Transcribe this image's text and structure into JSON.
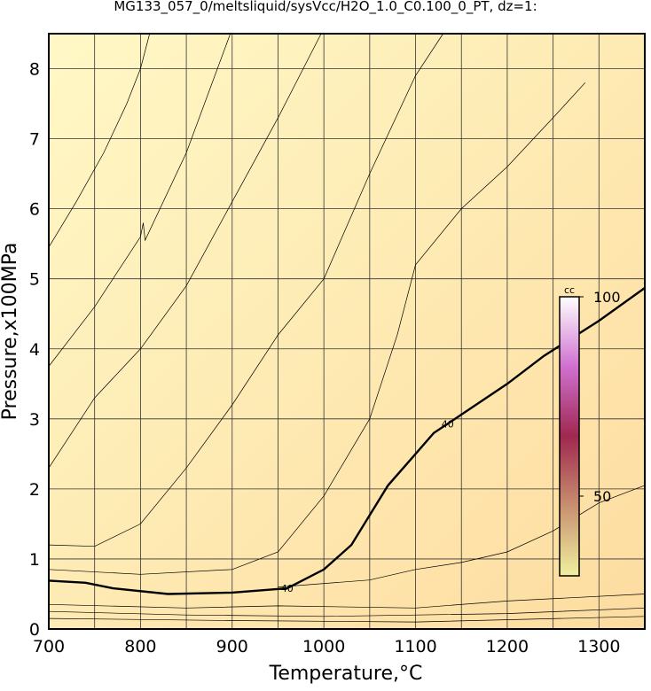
{
  "chart_data": {
    "type": "contour",
    "title": "MG133_057_0/meltsliquid/sysVcc/H2O_1.0_C0.100_0_PT, dz=1:",
    "x_label": "Temperature,°C",
    "y_label": "Pressure,x100MPa",
    "xlim": [
      700,
      1350
    ],
    "ylim": [
      0,
      8.5
    ],
    "xticks": [
      700,
      800,
      900,
      1000,
      1100,
      1200,
      1300
    ],
    "xgrid": [
      750,
      850,
      950,
      1050,
      1150,
      1250,
      1350
    ],
    "yticks": [
      0,
      1,
      2,
      3,
      4,
      5,
      6,
      7,
      8
    ],
    "background": [
      "#fff8c6",
      "#fddca0"
    ],
    "contours": [
      {
        "label": "40",
        "bold": true,
        "x": [
          700,
          740,
          770,
          830,
          900,
          960,
          1000,
          1030,
          1070,
          1100,
          1120,
          1135,
          1160,
          1200,
          1240,
          1300,
          1350
        ],
        "y": [
          0.69,
          0.66,
          0.58,
          0.5,
          0.52,
          0.58,
          0.85,
          1.2,
          2.05,
          2.5,
          2.8,
          2.93,
          3.15,
          3.5,
          3.9,
          4.4,
          4.87
        ]
      },
      {
        "x": [
          700,
          730,
          760,
          785,
          800,
          810
        ],
        "y": [
          5.45,
          6.1,
          6.8,
          7.5,
          8.0,
          8.5
        ]
      },
      {
        "x": [
          700,
          750,
          800,
          803,
          805,
          850,
          898
        ],
        "y": [
          3.75,
          4.6,
          5.6,
          5.8,
          5.55,
          6.8,
          8.5
        ]
      },
      {
        "x": [
          700,
          750,
          800,
          850,
          900,
          950,
          997
        ],
        "y": [
          2.3,
          3.3,
          4.0,
          4.9,
          6.1,
          7.3,
          8.5
        ]
      },
      {
        "x": [
          700,
          750,
          800,
          850,
          900,
          950,
          1000,
          1050,
          1100,
          1130
        ],
        "y": [
          1.2,
          1.18,
          1.5,
          2.3,
          3.2,
          4.2,
          5.0,
          6.5,
          7.9,
          8.5
        ]
      },
      {
        "x": [
          700,
          800,
          900,
          950,
          1000,
          1050,
          1080,
          1100,
          1150,
          1200,
          1250,
          1285
        ],
        "y": [
          0.85,
          0.78,
          0.85,
          1.1,
          1.9,
          3.0,
          4.2,
          5.2,
          6.0,
          6.6,
          7.3,
          7.8
        ]
      },
      {
        "x": [
          950,
          1050,
          1100,
          1150,
          1200,
          1250,
          1300,
          1350
        ],
        "y": [
          0.6,
          0.7,
          0.85,
          0.95,
          1.1,
          1.4,
          1.8,
          2.05
        ]
      },
      {
        "x": [
          700,
          850,
          950,
          1100,
          1200,
          1350
        ],
        "y": [
          0.35,
          0.3,
          0.33,
          0.3,
          0.4,
          0.5
        ]
      },
      {
        "x": [
          700,
          850,
          1000,
          1200,
          1350
        ],
        "y": [
          0.25,
          0.2,
          0.18,
          0.22,
          0.3
        ]
      },
      {
        "x": [
          700,
          900,
          1100,
          1350
        ],
        "y": [
          0.15,
          0.12,
          0.1,
          0.18
        ]
      }
    ],
    "colorbar": {
      "label": "cc",
      "lim": [
        30,
        100
      ],
      "ticks": [
        50,
        100
      ],
      "colors": [
        "#f0f0a0",
        "#c89070",
        "#a02850",
        "#d070d0",
        "#ffffff"
      ]
    }
  }
}
